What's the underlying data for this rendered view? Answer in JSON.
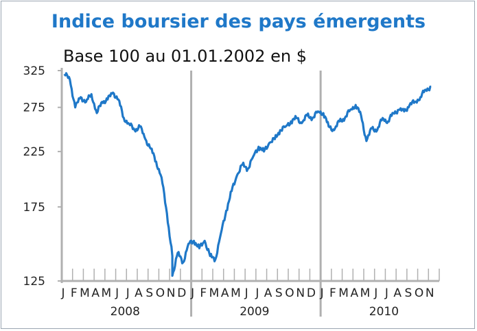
{
  "chart_data": {
    "type": "line",
    "title": "Indice boursier des pays émergents",
    "subtitle": "Base 100 au 01.01.2002 en $",
    "xlabel": "",
    "ylabel": "",
    "y_scale": "log",
    "y_ticks": [
      "125",
      "175",
      "225",
      "275",
      "325"
    ],
    "y_tick_values": [
      125,
      175,
      225,
      275,
      325
    ],
    "ylim": [
      125,
      325
    ],
    "years": [
      "2008",
      "2009",
      "2010"
    ],
    "month_labels": [
      "J",
      "F",
      "M",
      "A",
      "M",
      "J",
      "J",
      "A",
      "S",
      "O",
      "N",
      "D",
      "J",
      "F",
      "M",
      "A",
      "M",
      "J",
      "J",
      "A",
      "S",
      "O",
      "N",
      "D",
      "J",
      "F",
      "M",
      "A",
      "M",
      "J",
      "J",
      "A",
      "S",
      "O",
      "N"
    ],
    "grid": "vertical-year-separators",
    "colors": {
      "line": "#1f78c8",
      "axis": "#b0b0b0",
      "frame": "#9aa5b1"
    },
    "series": [
      {
        "x": [
          "2008-01",
          "2008-01",
          "2008-02",
          "2008-02",
          "2008-03",
          "2008-03",
          "2008-04",
          "2008-04",
          "2008-05",
          "2008-05",
          "2008-06",
          "2008-06",
          "2008-07",
          "2008-07",
          "2008-08",
          "2008-08",
          "2008-09",
          "2008-09",
          "2008-10",
          "2008-10",
          "2008-10",
          "2008-11",
          "2008-11",
          "2008-12",
          "2008-12",
          "2009-01",
          "2009-01",
          "2009-02",
          "2009-02",
          "2009-03",
          "2009-03",
          "2009-04",
          "2009-04",
          "2009-05",
          "2009-05",
          "2009-06",
          "2009-06",
          "2009-07",
          "2009-07",
          "2009-08",
          "2009-08",
          "2009-09",
          "2009-09",
          "2009-10",
          "2009-10",
          "2009-11",
          "2009-11",
          "2009-12",
          "2009-12",
          "2010-01",
          "2010-01",
          "2010-02",
          "2010-02",
          "2010-03",
          "2010-03",
          "2010-04",
          "2010-04",
          "2010-05",
          "2010-05",
          "2010-06",
          "2010-06",
          "2010-07",
          "2010-07",
          "2010-08",
          "2010-08",
          "2010-09",
          "2010-09",
          "2010-10",
          "2010-10",
          "2010-11"
        ],
        "values": [
          320,
          312,
          275,
          288,
          282,
          292,
          268,
          282,
          285,
          294,
          285,
          262,
          255,
          248,
          252,
          238,
          228,
          215,
          200,
          170,
          140,
          128,
          142,
          136,
          148,
          150,
          145,
          150,
          140,
          138,
          155,
          172,
          188,
          202,
          212,
          208,
          220,
          230,
          225,
          234,
          238,
          248,
          252,
          258,
          262,
          256,
          265,
          262,
          270,
          268,
          252,
          248,
          258,
          262,
          272,
          278,
          265,
          236,
          250,
          248,
          262,
          258,
          268,
          272,
          270,
          278,
          282,
          288,
          298,
          302
        ]
      }
    ]
  }
}
